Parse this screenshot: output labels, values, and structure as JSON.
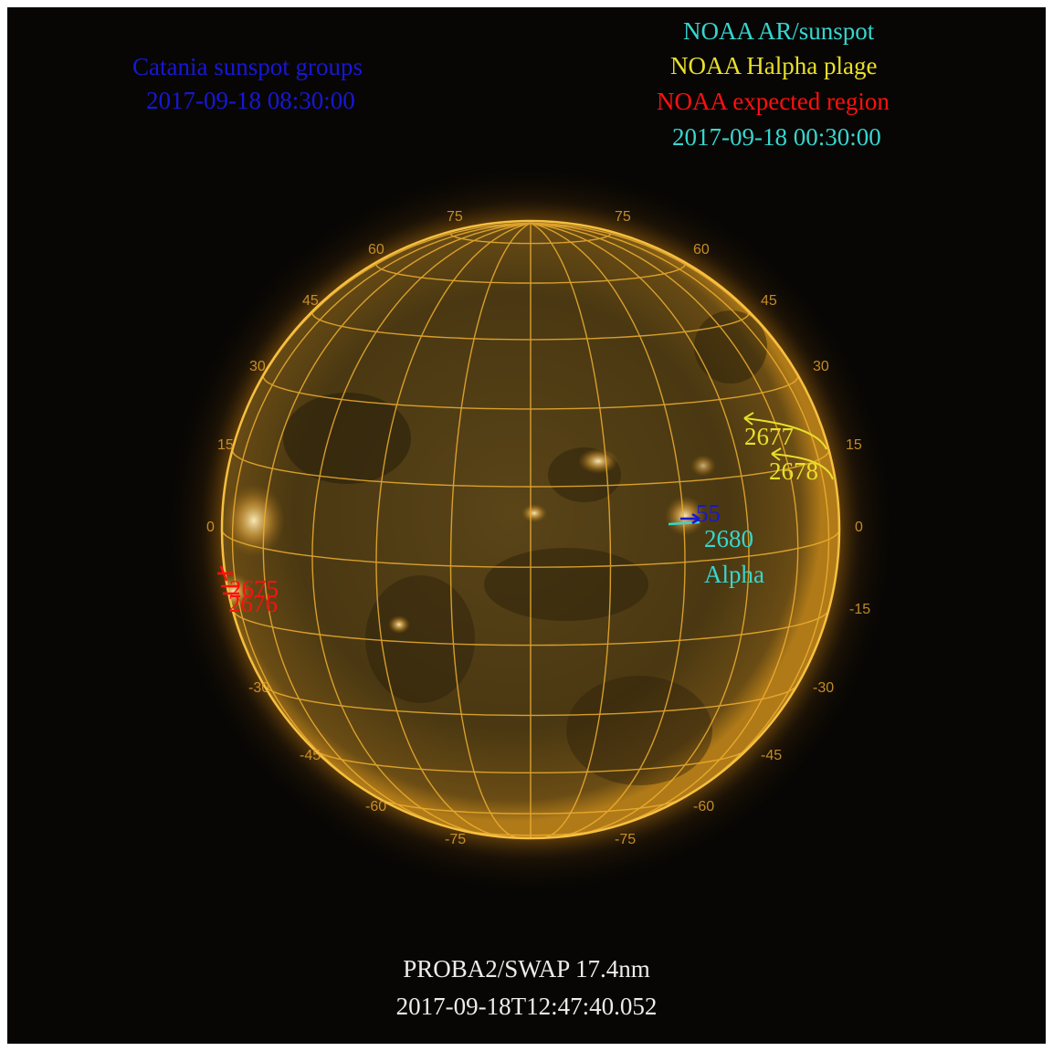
{
  "catania": {
    "title": "Catania sunspot groups",
    "time": "2017-09-18 08:30:00"
  },
  "noaa_legend": {
    "ar_sunspot": "NOAA AR/sunspot",
    "halpha_plage": "NOAA Halpha plage",
    "expected_region": "NOAA expected region",
    "time": "2017-09-18 00:30:00"
  },
  "footer": {
    "instrument": "PROBA2/SWAP 17.4nm",
    "timestamp": "2017-09-18T12:47:40.052"
  },
  "regions": {
    "plage_1": "2677",
    "plage_2": "2678",
    "catania_group": "55",
    "ar_number": "2680",
    "ar_class": "Alpha",
    "expected_1": "2675",
    "expected_2": "2676"
  },
  "grid_labels": {
    "lat_75": "75",
    "lat_60": "60",
    "lat_45": "45",
    "lat_30": "30",
    "lat_15": "15",
    "lat_0": "0",
    "lat_m15": "-15",
    "lat_m30": "-30",
    "lat_m45": "-45",
    "lat_m60": "-60",
    "lat_m75": "-75"
  },
  "colors": {
    "catania": "#1717d6",
    "noaa_ar": "#36d6d0",
    "plage": "#e8e02a",
    "expected": "#ff1010",
    "grid": "#f0b030"
  }
}
